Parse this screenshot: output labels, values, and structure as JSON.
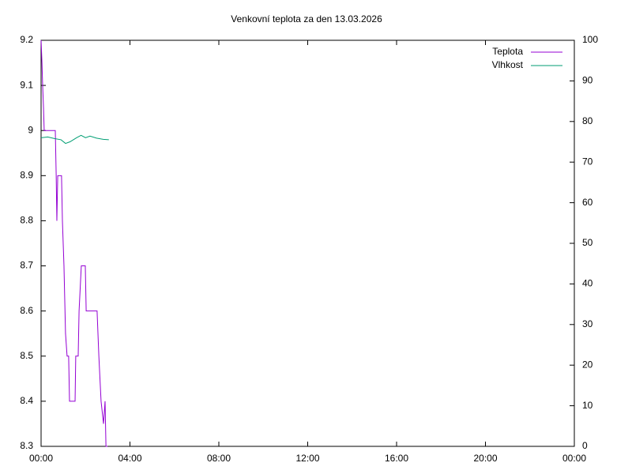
{
  "chart_data": {
    "type": "line",
    "title": "Venkovní teplota za den 13.03.2026",
    "xlim": [
      0,
      24
    ],
    "xticks": [
      {
        "value": 0,
        "label": "00:00"
      },
      {
        "value": 4,
        "label": "04:00"
      },
      {
        "value": 8,
        "label": "08:00"
      },
      {
        "value": 12,
        "label": "12:00"
      },
      {
        "value": 16,
        "label": "16:00"
      },
      {
        "value": 20,
        "label": "20:00"
      },
      {
        "value": 24,
        "label": "00:00"
      }
    ],
    "ylim": [
      8.3,
      9.2
    ],
    "yticks": [
      8.3,
      8.4,
      8.5,
      8.6,
      8.7,
      8.8,
      8.9,
      9,
      9.1,
      9.2
    ],
    "y2lim": [
      0,
      100
    ],
    "y2ticks": [
      0,
      10,
      20,
      30,
      40,
      50,
      60,
      70,
      80,
      90,
      100
    ],
    "legend": "top-right",
    "series": [
      {
        "name": "Teplota",
        "color": "#9400d3",
        "x": [
          0,
          0.04,
          0.07,
          0.11,
          0.14,
          0.64,
          0.68,
          0.71,
          0.75,
          0.92,
          0.96,
          1.03,
          1.1,
          1.17,
          1.24,
          1.28,
          1.53,
          1.56,
          1.67,
          1.71,
          1.81,
          1.99,
          2.03,
          2.52,
          2.6,
          2.7,
          2.81,
          2.88,
          2.92,
          2.99
        ],
        "values": [
          9.2,
          9.15,
          9.1,
          9.05,
          9,
          9,
          8.9,
          8.8,
          8.9,
          8.9,
          8.8,
          8.7,
          8.55,
          8.5,
          8.5,
          8.4,
          8.4,
          8.5,
          8.5,
          8.6,
          8.7,
          8.7,
          8.6,
          8.6,
          8.5,
          8.4,
          8.35,
          8.4,
          8.3,
          8.3
        ]
      },
      {
        "name": "Vlhkost",
        "color": "#009e73",
        "axis": "y2",
        "x": [
          0,
          0.3,
          0.6,
          0.9,
          1.1,
          1.3,
          1.6,
          1.8,
          2,
          2.2,
          2.5,
          2.8,
          3.05
        ],
        "values": [
          76,
          76.2,
          75.8,
          75.5,
          74.6,
          75,
          76,
          76.6,
          76,
          76.4,
          75.9,
          75.6,
          75.5
        ]
      }
    ]
  }
}
